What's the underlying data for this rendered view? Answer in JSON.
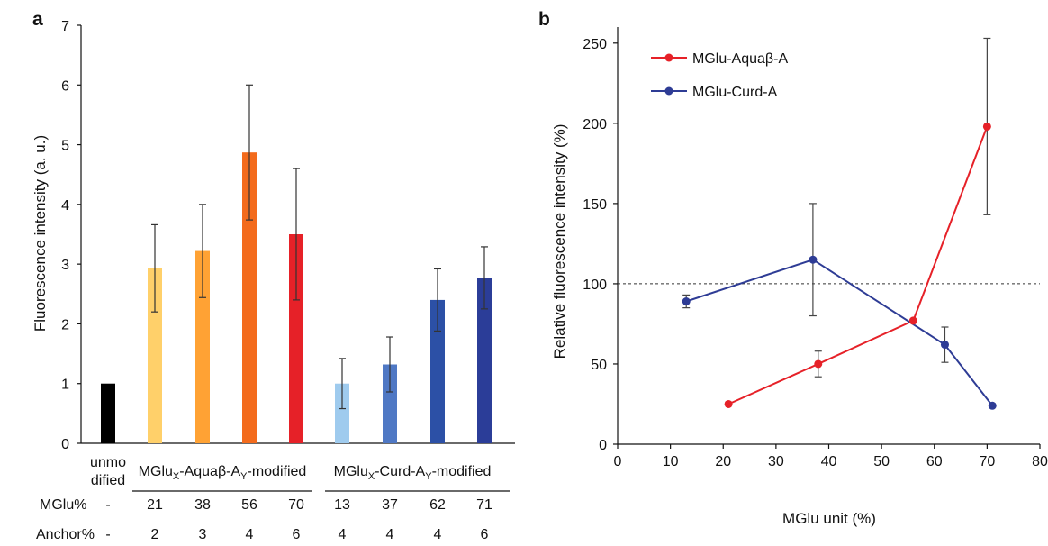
{
  "chart_data": [
    {
      "panel_label": "a",
      "type": "bar",
      "ylabel": "Fluorescence intensity (a. u.)",
      "ylim": [
        0,
        7
      ],
      "yticks": [
        0,
        1,
        2,
        3,
        4,
        5,
        6,
        7
      ],
      "bars": [
        {
          "label_line1": "unmo",
          "label_line2": "dified",
          "mglu": "-",
          "anchor": "-",
          "value": 1.0,
          "err": 0,
          "color": "#000000"
        },
        {
          "mglu": "21",
          "anchor": "2",
          "value": 2.93,
          "err": 0.73,
          "color": "#ffd06a"
        },
        {
          "mglu": "38",
          "anchor": "3",
          "value": 3.22,
          "err": 0.78,
          "color": "#ffa234"
        },
        {
          "mglu": "56",
          "anchor": "4",
          "value": 4.87,
          "err": 1.13,
          "color": "#f36b1c"
        },
        {
          "mglu": "70",
          "anchor": "6",
          "value": 3.5,
          "err": 1.1,
          "color": "#e62128"
        },
        {
          "mglu": "13",
          "anchor": "4",
          "value": 1.0,
          "err": 0.42,
          "color": "#9fcbee"
        },
        {
          "mglu": "37",
          "anchor": "4",
          "value": 1.32,
          "err": 0.46,
          "color": "#4f78c4"
        },
        {
          "mglu": "62",
          "anchor": "4",
          "value": 2.4,
          "err": 0.52,
          "color": "#2c50a6"
        },
        {
          "mglu": "71",
          "anchor": "6",
          "value": 2.77,
          "err": 0.52,
          "color": "#2b3d98"
        }
      ],
      "groups": [
        {
          "main": "MGlu",
          "sub1": "X",
          "mid": "-Aquaβ-A",
          "sub2": "Y",
          "tail": "-modified"
        },
        {
          "main": "MGlu",
          "sub1": "X",
          "mid": "-Curd-A",
          "sub2": "Y",
          "tail": "-modified"
        }
      ],
      "row_labels": {
        "mglu": "MGlu%",
        "anchor": "Anchor%"
      }
    },
    {
      "panel_label": "b",
      "type": "line",
      "xlabel": "MGlu unit (%)",
      "ylabel": "Relative fluorescence intensity (%)",
      "xlim": [
        0,
        80
      ],
      "ylim": [
        0,
        260
      ],
      "xticks": [
        0,
        10,
        20,
        30,
        40,
        50,
        60,
        70,
        80
      ],
      "yticks": [
        0,
        50,
        100,
        150,
        200,
        250
      ],
      "reference_line": 100,
      "legend_position": "top-left",
      "series": [
        {
          "name": "MGlu-Aquaβ-A",
          "color": "#e62128",
          "points": [
            {
              "x": 21,
              "y": 25,
              "err": 0
            },
            {
              "x": 38,
              "y": 50,
              "err": 8
            },
            {
              "x": 56,
              "y": 77,
              "err": 0
            },
            {
              "x": 70,
              "y": 198,
              "err": 55
            }
          ]
        },
        {
          "name": "MGlu-Curd-A",
          "color": "#2e3c95",
          "points": [
            {
              "x": 13,
              "y": 89,
              "err": 4
            },
            {
              "x": 37,
              "y": 115,
              "err": 35
            },
            {
              "x": 62,
              "y": 62,
              "err": 11
            },
            {
              "x": 71,
              "y": 24,
              "err": 0
            }
          ]
        }
      ]
    }
  ]
}
